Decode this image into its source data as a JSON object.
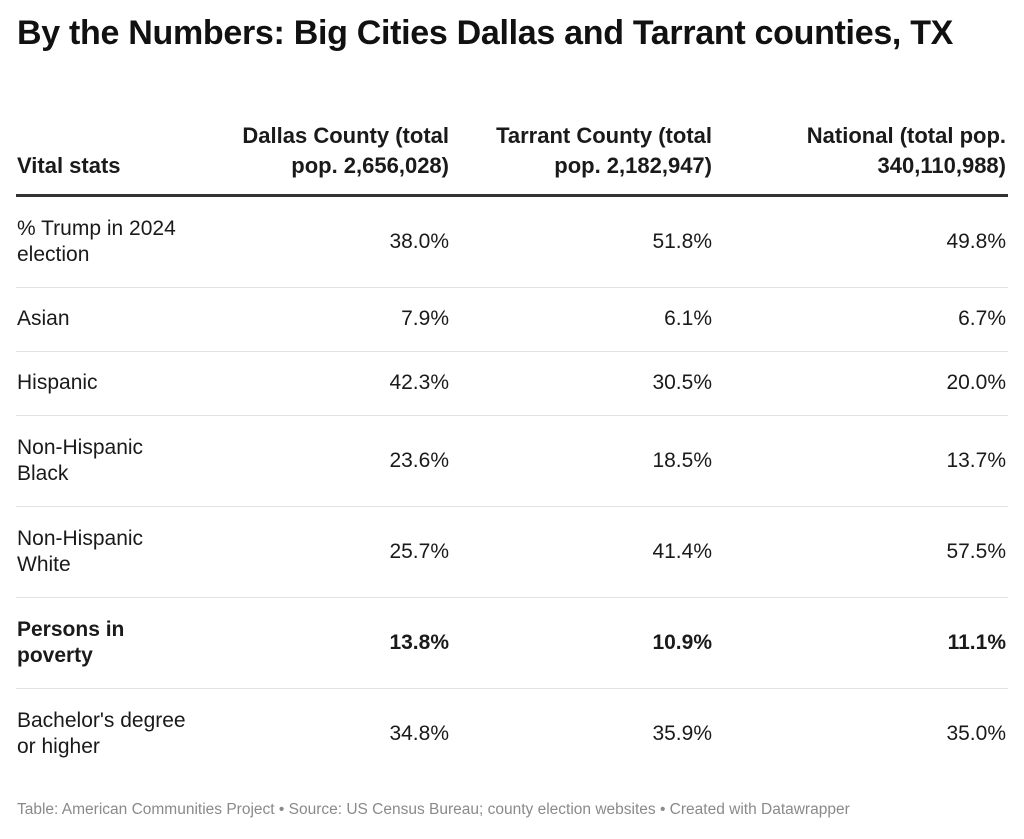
{
  "chart_data": {
    "type": "table",
    "title": "By the Numbers: Big Cities Dallas and Tarrant counties, TX",
    "columns": [
      "Vital stats",
      "Dallas County (total pop. 2,656,028)",
      "Tarrant County (total pop. 2,182,947)",
      "National (total pop. 340,110,988)"
    ],
    "rows": [
      {
        "label": "% Trump in 2024 election",
        "values": [
          "38.0%",
          "51.8%",
          "49.8%"
        ],
        "bold": false
      },
      {
        "label": "Asian",
        "values": [
          "7.9%",
          "6.1%",
          "6.7%"
        ],
        "bold": false
      },
      {
        "label": "Hispanic",
        "values": [
          "42.3%",
          "30.5%",
          "20.0%"
        ],
        "bold": false
      },
      {
        "label": "Non-Hispanic Black",
        "values": [
          "23.6%",
          "18.5%",
          "13.7%"
        ],
        "bold": false
      },
      {
        "label": "Non-Hispanic White",
        "values": [
          "25.7%",
          "41.4%",
          "57.5%"
        ],
        "bold": false
      },
      {
        "label": "Persons in poverty",
        "values": [
          "13.8%",
          "10.9%",
          "11.1%"
        ],
        "bold": true
      },
      {
        "label": "Bachelor's degree or higher",
        "values": [
          "34.8%",
          "35.9%",
          "35.0%"
        ],
        "bold": false
      }
    ],
    "footer": "Table: American Communities Project • Source: US Census Bureau; county election websites • Created with Datawrapper"
  }
}
